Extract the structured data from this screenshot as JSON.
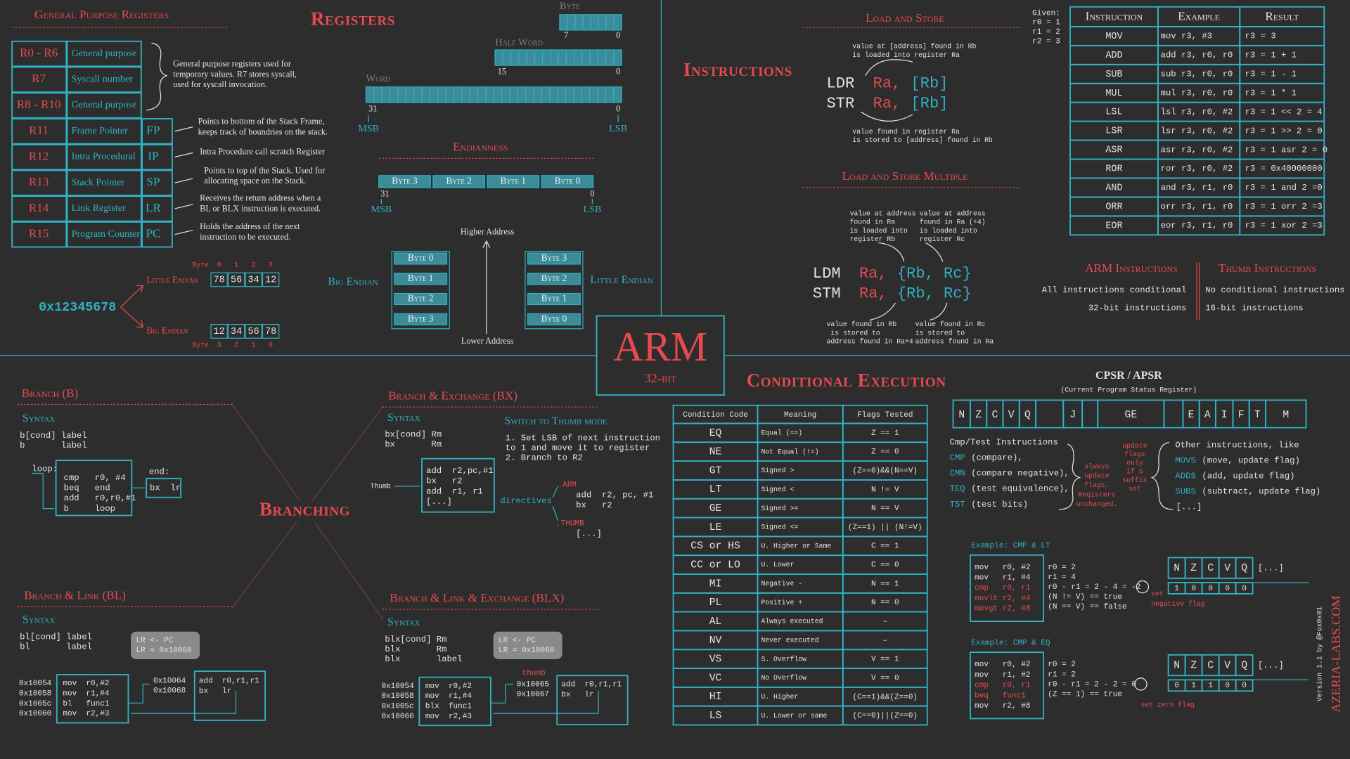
{
  "registers": {
    "title": "Registers",
    "gp_title": "General Purpose Registers",
    "rows": [
      {
        "reg": "R0 - R6",
        "name": "General purpose"
      },
      {
        "reg": "R7",
        "name": "Syscall number"
      },
      {
        "reg": "R8 - R10",
        "name": "General purpose"
      },
      {
        "reg": "R11",
        "name": "Frame Pointer",
        "alias": "FP"
      },
      {
        "reg": "R12",
        "name": "Intra Procedural",
        "alias": "IP"
      },
      {
        "reg": "R13",
        "name": "Stack Pointer",
        "alias": "SP"
      },
      {
        "reg": "R14",
        "name": "Link Register",
        "alias": "LR"
      },
      {
        "reg": "R15",
        "name": "Program Counter",
        "alias": "PC"
      }
    ],
    "gp_note": [
      "General purpose registers used for",
      "temporary values. R7 stores syscall,",
      "used for syscall invocation."
    ],
    "notes": [
      [
        "Points to bottom of the Stack Frame,",
        "keeps track of boundries on the stack."
      ],
      [
        "Intra Procedure call scratch Register"
      ],
      [
        "Points to top of the Stack. Used for",
        "allocating space on the Stack."
      ],
      [
        "Receives the return address when a",
        "BL or BLX instruction is executed."
      ],
      [
        "Holds the address of the next",
        "instruction to be executed."
      ]
    ]
  },
  "sizes": {
    "byte": {
      "label": "Byte",
      "high": 7,
      "low": 0
    },
    "half_word": {
      "label": "Half Word",
      "high": 15,
      "low": 0
    },
    "word": {
      "label": "Word",
      "high": 31,
      "low": 0,
      "msb": "MSB",
      "lsb": "LSB"
    }
  },
  "endianness": {
    "title": "Endianness",
    "bytes": [
      "Byte 3",
      "Byte 2",
      "Byte 1",
      "Byte 0"
    ],
    "high": 31,
    "low": 0,
    "msb": "MSB",
    "lsb": "LSB",
    "higher_address": "Higher Address",
    "lower_address": "Lower Address",
    "big_endian": {
      "label": "Big Endian",
      "bytes": [
        "Byte 0",
        "Byte 1",
        "Byte 2",
        "Byte 3"
      ]
    },
    "little_endian": {
      "label": "Little Endian",
      "bytes": [
        "Byte 3",
        "Byte 2",
        "Byte 1",
        "Byte 0"
      ]
    }
  },
  "endian_example": {
    "value": "0x12345678",
    "little": {
      "label": "Little Endian",
      "byte_label": "Byte",
      "indices": [
        0,
        1,
        2,
        3
      ],
      "bytes": [
        "78",
        "56",
        "34",
        "12"
      ]
    },
    "big": {
      "label": "Big Endian",
      "byte_label": "Byte",
      "indices": [
        3,
        2,
        1,
        0
      ],
      "bytes": [
        "12",
        "34",
        "56",
        "78"
      ]
    }
  },
  "center": {
    "title": "ARM",
    "subtitle": "32-bit"
  },
  "instructions": {
    "title": "Instructions",
    "load_store": {
      "title": "Load and Store",
      "top_note": [
        "value at [address] found in Rb",
        "is loaded into register Ra"
      ],
      "lines": [
        {
          "op": "LDR",
          "a": "Ra,",
          "b": "[Rb]"
        },
        {
          "op": "STR",
          "a": "Ra,",
          "b": "[Rb]"
        }
      ],
      "bottom_note": [
        "value found in register Ra",
        "is stored to [address] found in Rb"
      ]
    },
    "load_store_multiple": {
      "title": "Load and Store Multiple",
      "left_top": [
        "value at address",
        "found in Ra",
        "is loaded into",
        "register Rb"
      ],
      "right_top": [
        "value at address",
        "found in Ra (+4)",
        "is loaded into",
        "register Rc"
      ],
      "lines": [
        {
          "op": "LDM",
          "a": "Ra,",
          "b": "{Rb, Rc}"
        },
        {
          "op": "STM",
          "a": "Ra,",
          "b": "{Rb, Rc}"
        }
      ],
      "left_bottom": [
        "value found in Rb",
        " is stored to",
        "address found in Ra+4"
      ],
      "right_bottom": [
        "value found in Rc",
        "is stored to",
        "address found in Ra"
      ]
    },
    "given": [
      "Given:",
      "r0 = 1",
      "r1 = 2",
      "r2 = 3"
    ],
    "table": {
      "header": [
        "Instruction",
        "Example",
        "Result"
      ],
      "rows": [
        [
          "MOV",
          "mov r3, #3",
          "r3 = 3"
        ],
        [
          "ADD",
          "add r3, r0, r0",
          "r3 = 1 + 1"
        ],
        [
          "SUB",
          "sub r3, r0, r0",
          "r3 = 1 - 1"
        ],
        [
          "MUL",
          "mul r3, r0, r0",
          "r3 = 1 * 1"
        ],
        [
          "LSL",
          "lsl r3, r0, #2",
          "r3 = 1 << 2 = 4"
        ],
        [
          "LSR",
          "lsr r3, r0, #2",
          "r3 = 1 >> 2 = 0"
        ],
        [
          "ASR",
          "asr r3, r0, #2",
          "r3 = 1 asr 2 = 0"
        ],
        [
          "ROR",
          "ror r3, r0, #2",
          "r3 = 0x40000000"
        ],
        [
          "AND",
          "and r3, r1, r0",
          "r3 = 1 and 2 =0"
        ],
        [
          "ORR",
          "orr r3, r1, r0",
          "r3 = 1 orr 2 =3"
        ],
        [
          "EOR",
          "eor r3, r1, r0",
          "r3 = 1 xor 2 =3"
        ]
      ]
    },
    "arm": {
      "title": "ARM Instructions",
      "lines": [
        "All instructions conditional",
        "32-bit instructions"
      ]
    },
    "thumb": {
      "title": "Thumb Instructions",
      "lines": [
        "No conditional instructions",
        "16-bit instructions"
      ]
    }
  },
  "conditional": {
    "title": "Conditional Execution",
    "table": {
      "header": [
        "Condition Code",
        "Meaning",
        "Flags Tested"
      ],
      "rows": [
        [
          "EQ",
          "Equal (==)",
          "Z == 1"
        ],
        [
          "NE",
          "Not Equal (!=)",
          "Z == 0"
        ],
        [
          "GT",
          "Signed >",
          "(Z==0)&&(N==V)"
        ],
        [
          "LT",
          "Signed <",
          "N != V"
        ],
        [
          "GE",
          "Signed >=",
          "N == V"
        ],
        [
          "LE",
          "Signed <=",
          "(Z==1) || (N!=V)"
        ],
        [
          "CS or HS",
          "U. Higher or Same",
          "C == 1"
        ],
        [
          "CC or LO",
          "U. Lower",
          "C == 0"
        ],
        [
          "MI",
          "Negative -",
          "N == 1"
        ],
        [
          "PL",
          "Positive +",
          "N == 0"
        ],
        [
          "AL",
          "Always executed",
          "–"
        ],
        [
          "NV",
          "Never executed",
          "–"
        ],
        [
          "VS",
          "S. Overflow",
          "V == 1"
        ],
        [
          "VC",
          "No Overflow",
          "V == 0"
        ],
        [
          "HI",
          "U. Higher",
          "(C==1)&&(Z==0)"
        ],
        [
          "LS",
          "U. Lower or same",
          "(C==0)||(Z==0)"
        ]
      ]
    }
  },
  "cpsr": {
    "title": "CPSR / APSR",
    "subtitle": "(Current Program Status Register)",
    "flags": [
      "N",
      "Z",
      "C",
      "V",
      "Q",
      "J",
      "GE",
      "E",
      "A",
      "I",
      "F",
      "T",
      "M"
    ],
    "cmp_test": {
      "title": "Cmp/Test Instructions",
      "items": [
        {
          "op": "CMP",
          "desc": "(compare),"
        },
        {
          "op": "CMN",
          "desc": "(compare negative),"
        },
        {
          "op": "TEQ",
          "desc": "(test equivalence),"
        },
        {
          "op": "TST",
          "desc": "(test bits)"
        }
      ]
    },
    "always_note": [
      "always",
      "update",
      "flags.",
      "Registers",
      "unchanged."
    ],
    "s_note": [
      "update",
      "flags",
      "only",
      "if S",
      "suffix",
      "set"
    ],
    "other": {
      "title": "Other instructions, like",
      "items": [
        {
          "op": "MOVS",
          "desc": "(move, update flag)"
        },
        {
          "op": "ADDS",
          "desc": "(add, update flag)"
        },
        {
          "op": "SUBS",
          "desc": "(subtract, update flag)"
        }
      ],
      "more": "[...]"
    },
    "examples": [
      {
        "title": "Example: CMP & LT",
        "code": [
          "mov   r0, #2",
          "mov   r1, #4",
          "cmp   r0, r1",
          "movlt r2, #4",
          "movgt r2, #8"
        ],
        "calc": [
          "r0 = 2",
          "r1 = 4",
          "r0 - r1 = 2 - 4 = -2",
          "(N != V) == true",
          "(N == V) == false"
        ],
        "note": [
          "set",
          "negative flag"
        ],
        "flags": [
          "N",
          "Z",
          "C",
          "V",
          "Q"
        ],
        "more": "[...]",
        "values": [
          1,
          0,
          0,
          0,
          0
        ]
      },
      {
        "title": "Example: CMP & EQ",
        "code": [
          "mov   r0, #2",
          "mov   r1, #2",
          "cmp   r0, r1",
          "beq   func1",
          "mov   r2, #8"
        ],
        "calc": [
          "r0 = 2",
          "r1 = 2",
          "r0 - r1 = 2 - 2 = 0",
          "(Z == 1) == true"
        ],
        "note": [
          "set zero flag"
        ],
        "flags": [
          "N",
          "Z",
          "C",
          "V",
          "Q"
        ],
        "more": "[...]",
        "values": [
          0,
          1,
          1,
          0,
          0
        ]
      }
    ]
  },
  "branching": {
    "title": "Branching",
    "b": {
      "title": "Branch (B)",
      "syntax_label": "Syntax",
      "syntax": [
        "b[cond] label",
        "b       label"
      ],
      "loop_label": "loop:",
      "code": [
        "cmp   r0, #4",
        "beq   end",
        "add   r0,r0,#1",
        "b     loop"
      ],
      "end_label": "end:",
      "end_code": "bx  lr"
    },
    "bx": {
      "title": "Branch & Exchange (BX)",
      "syntax_label": "Syntax",
      "syntax": [
        "bx[cond] Rm",
        "bx       Rm"
      ],
      "thumb_label": "Thumb",
      "code": [
        "add  r2,pc,#1",
        "bx   r2",
        "add  r1, r1",
        "[...]"
      ],
      "switch_title": "Switch to Thumb mode",
      "switch_steps": [
        "1. Set LSB of next instruction",
        "to 1 and move it to register",
        "2. Branch to R2"
      ],
      "directives": "directives",
      "arm_directive": ".ARM",
      "arm_code": [
        "add  r2, pc, #1",
        "bx   r2"
      ],
      "thumb_directive": ".THUMB",
      "thumb_code": "[...]"
    },
    "bl": {
      "title": "Branch & Link (BL)",
      "syntax_label": "Syntax",
      "syntax": [
        "bl[cond] label",
        "bl       label"
      ],
      "bubble": [
        "LR <- PC",
        "LR = 0x10060"
      ],
      "addresses": [
        "0x10054",
        "0x10058",
        "0x1005c",
        "0x10060"
      ],
      "code": [
        "mov  r0,#2",
        "mov  r1,#4",
        "bl   func1",
        "mov  r2,#3"
      ],
      "func_addresses": [
        "0x10064",
        "0x10068"
      ],
      "func_code": [
        "add  r0,r1,r1",
        "bx   lr"
      ]
    },
    "blx": {
      "title": "Branch & Link & Exchange (BLX)",
      "syntax_label": "Syntax",
      "syntax": [
        "blx[cond] Rm",
        "blx       Rm",
        "blx       label"
      ],
      "bubble": [
        "LR <- PC",
        "LR = 0x10060"
      ],
      "mode": "thumb",
      "addresses": [
        "0x10054",
        "0x10058",
        "0x1005c",
        "0x10060"
      ],
      "code": [
        "mov  r0,#2",
        "mov  r1,#4",
        "blx  func1",
        "mov  r2,#3"
      ],
      "func_addresses": [
        "0x10065",
        "0x10067"
      ],
      "func_code": [
        "add  r0,r1,r1",
        "bx   lr"
      ]
    }
  },
  "credits": {
    "site": "AZERIA-LABS.COM",
    "version": "Version 1.1 by @Fox0x01"
  }
}
